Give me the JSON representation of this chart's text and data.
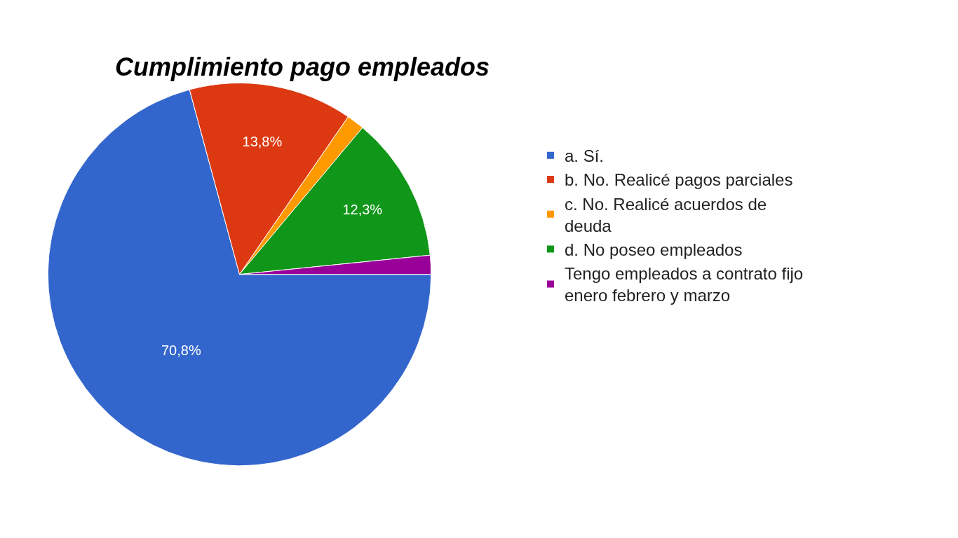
{
  "chart_data": {
    "type": "pie",
    "title": "Cumplimiento pago empleados",
    "categories": [
      "a. Sí.",
      "b. No. Realicé pagos parciales",
      "c. No. Realicé acuerdos de deuda",
      "d. No poseo empleados",
      "Tengo empleados a contrato fijo enero febrero y marzo"
    ],
    "values": [
      70.8,
      13.8,
      1.5,
      12.3,
      1.6
    ],
    "value_labels": [
      "70,8%",
      "13,8%",
      null,
      "12,3%",
      null
    ],
    "colors": [
      "#3366cc",
      "#dc3912",
      "#ff9900",
      "#109618",
      "#990099"
    ],
    "legend": "right"
  }
}
